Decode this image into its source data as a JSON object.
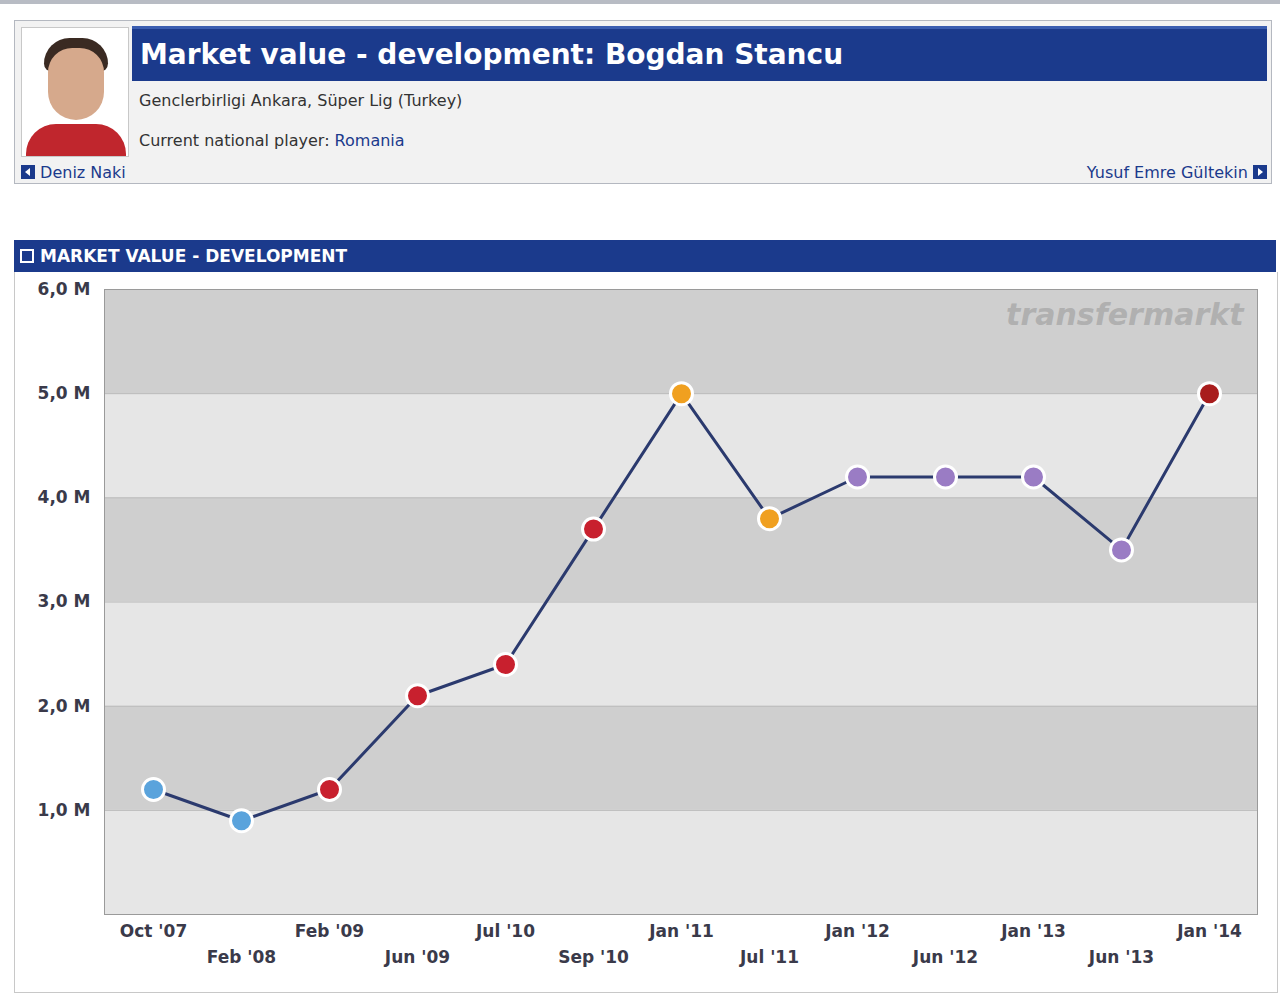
{
  "header": {
    "title": "Market value - development: Bogdan Stancu",
    "club": "Genclerbirligi Ankara, Süper Lig (Turkey)",
    "national_label": "Current national player:",
    "national_team": "Romania",
    "previous": "Deniz Naki",
    "next": "Yusuf Emre Gültekin"
  },
  "chart_data": {
    "type": "line",
    "title": "MARKET VALUE - DEVELOPMENT",
    "categories": [
      "Oct '07",
      "Feb '08",
      "Feb '09",
      "Jun '09",
      "Jul '10",
      "Sep '10",
      "Jan '11",
      "Jul '11",
      "Jan '12",
      "Jun '12",
      "Jan '13",
      "Jun '13",
      "Jan '14"
    ],
    "values": [
      1.2,
      0.9,
      1.2,
      2.1,
      2.4,
      3.7,
      5.0,
      3.8,
      4.2,
      4.2,
      4.2,
      3.5,
      5.0
    ],
    "color": "#2b3a6e",
    "colors": [
      "#5aa3dc",
      "#5aa3dc",
      "#c8202e",
      "#c8202e",
      "#c8202e",
      "#c8202e",
      "#f0a020",
      "#f0a020",
      "#9a7cc4",
      "#9a7cc4",
      "#9a7cc4",
      "#9a7cc4",
      "#a81c1c"
    ],
    "marker": "circle",
    "ylim": [
      0,
      6
    ],
    "yticks": [
      {
        "value": 1,
        "label": "1,0 M"
      },
      {
        "value": 2,
        "label": "2,0 M"
      },
      {
        "value": 3,
        "label": "3,0 M"
      },
      {
        "value": 4,
        "label": "4,0 M"
      },
      {
        "value": 5,
        "label": "5,0 M"
      },
      {
        "value": 6,
        "label": "6,0 M"
      }
    ],
    "grid": true,
    "annotations": [
      "transfermarkt"
    ]
  }
}
